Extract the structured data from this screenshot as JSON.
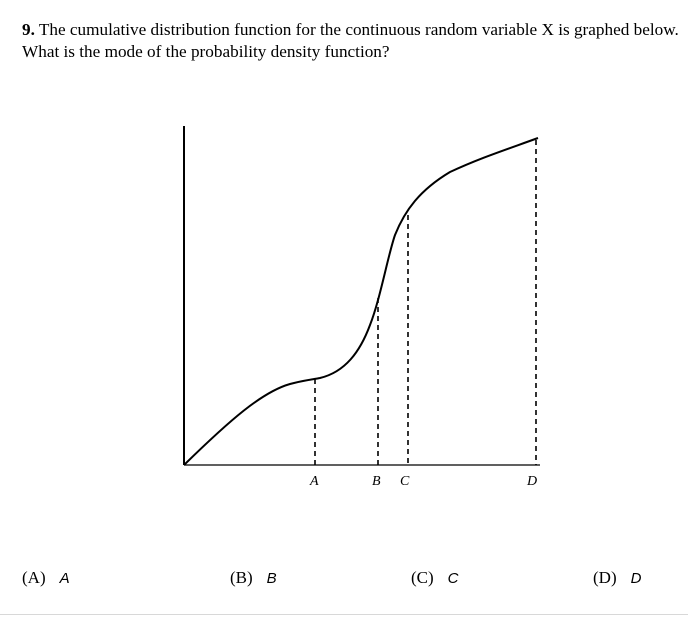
{
  "question": {
    "number": "9.",
    "text": " The cumulative distribution function for the continuous random variable X is graphed below. What is the mode of the probability density function?"
  },
  "graph": {
    "markers": [
      {
        "label": "A"
      },
      {
        "label": "B"
      },
      {
        "label": "C"
      },
      {
        "label": "D"
      }
    ]
  },
  "choices": [
    {
      "option": "(A)",
      "value": "A"
    },
    {
      "option": "(B)",
      "value": "B"
    },
    {
      "option": "(C)",
      "value": "C"
    },
    {
      "option": "(D)",
      "value": "D"
    }
  ]
}
